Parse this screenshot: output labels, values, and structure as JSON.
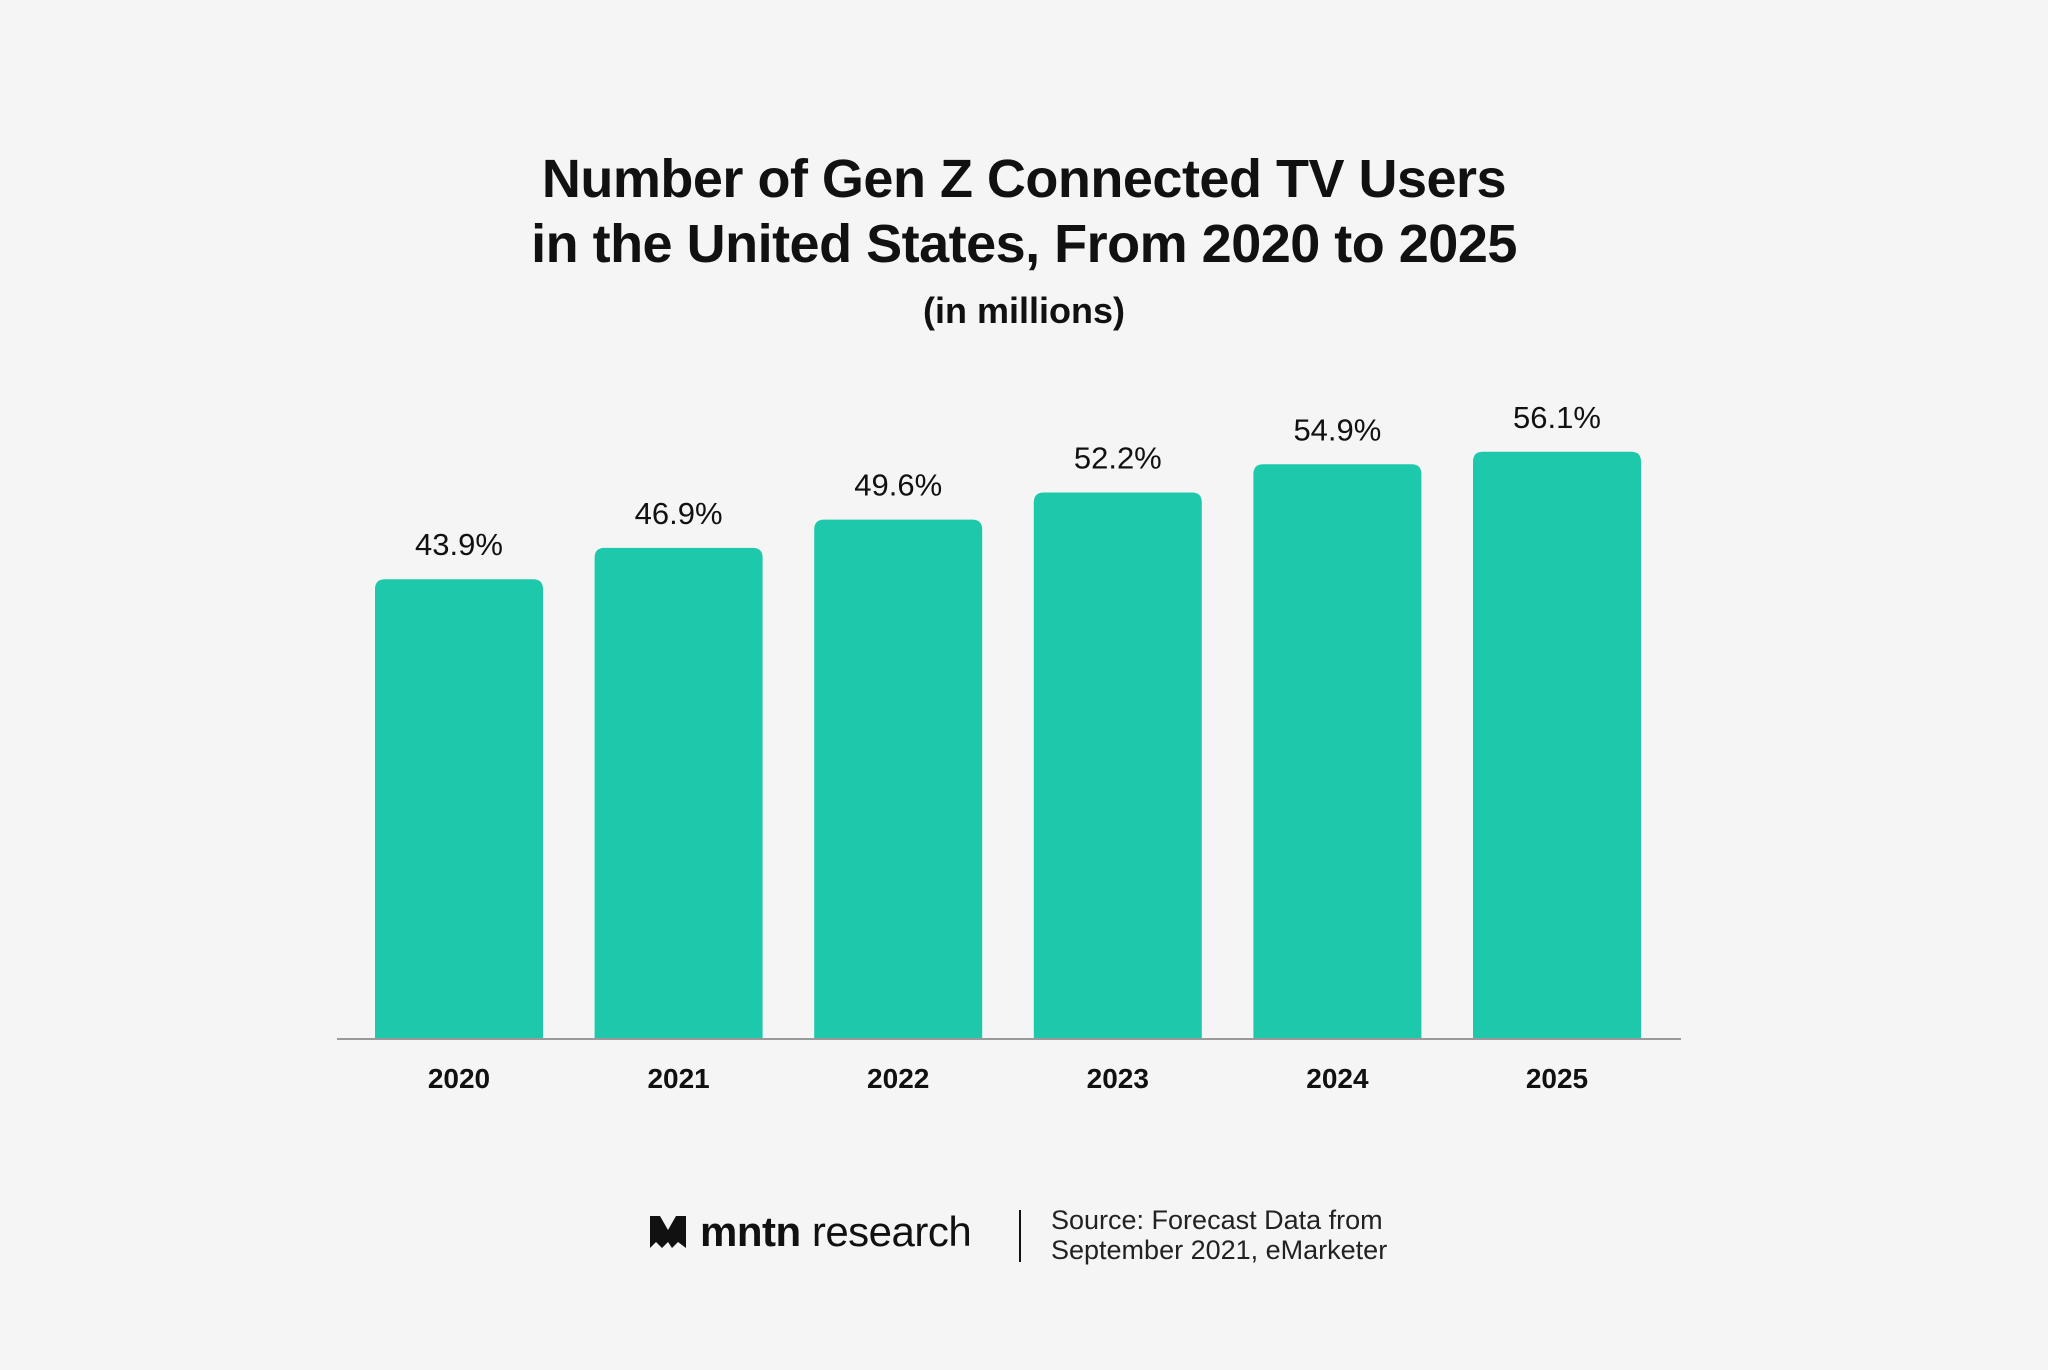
{
  "chart_data": {
    "type": "bar",
    "title": "Number of Gen Z Connected TV Users in the United States, From 2020 to 2025",
    "title_lines": [
      "Number of Gen Z Connected TV Users",
      "in the United States, From 2020 to 2025"
    ],
    "subtitle": "(in millions)",
    "categories": [
      "2020",
      "2021",
      "2022",
      "2023",
      "2024",
      "2025"
    ],
    "values": [
      43.9,
      46.9,
      49.6,
      52.2,
      54.9,
      56.1
    ],
    "data_labels": [
      "43.9%",
      "46.9%",
      "49.6%",
      "52.2%",
      "54.9%",
      "56.1%"
    ],
    "xlabel": "",
    "ylabel": "",
    "ylim": [
      0,
      60
    ],
    "grid": false,
    "bar_color": "#1dc9aa",
    "axis_color": "#9a9a9a"
  },
  "footer": {
    "brand_bold": "mntn",
    "brand_light": "research",
    "logo_icon": "mntn-m-logo",
    "source_line1": "Source: Forecast Data from",
    "source_line2": "September 2021, eMarketer"
  }
}
